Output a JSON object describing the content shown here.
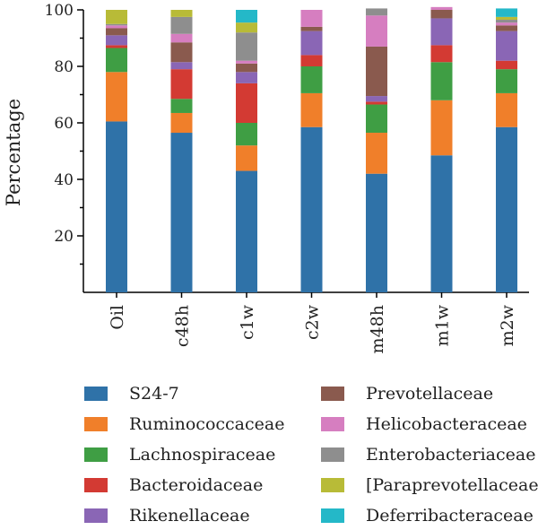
{
  "chart_data": {
    "type": "bar",
    "stacked": true,
    "ylabel": "Percentage",
    "xlabel": "",
    "ylim": [
      0,
      100
    ],
    "yticks": [
      20,
      40,
      60,
      80,
      100
    ],
    "categories": [
      "Oil",
      "c48h",
      "c1w",
      "c2w",
      "m48h",
      "m1w",
      "m2w"
    ],
    "series": [
      {
        "name": "S24-7",
        "color": "#2f72a8",
        "values": [
          60.5,
          56.5,
          43,
          58.5,
          42,
          48.5,
          58.5
        ]
      },
      {
        "name": "Ruminococcaceae",
        "color": "#f07f2a",
        "values": [
          17.5,
          7,
          9,
          12,
          14.5,
          19.5,
          12
        ]
      },
      {
        "name": "Lachnospiraceae",
        "color": "#3f9e44",
        "values": [
          8.5,
          5,
          8,
          9.5,
          10,
          13.5,
          8.5
        ]
      },
      {
        "name": "Bacteroidaceae",
        "color": "#d33a33",
        "values": [
          1,
          10.5,
          14,
          4,
          1,
          6,
          3
        ]
      },
      {
        "name": "Rikenellaceae",
        "color": "#8a66b5",
        "values": [
          3.5,
          2.5,
          4,
          8.5,
          2,
          9.5,
          10.5
        ]
      },
      {
        "name": "Prevotellaceae",
        "color": "#8a5a4e",
        "values": [
          2.5,
          7,
          3,
          1.5,
          17.5,
          3,
          2
        ]
      },
      {
        "name": "Helicobacteraceae",
        "color": "#d67ec0",
        "values": [
          1,
          3,
          1,
          6,
          11,
          1,
          1
        ]
      },
      {
        "name": "Enterobacteriaceae",
        "color": "#8e8e8e",
        "values": [
          0.5,
          6,
          10,
          0,
          2.5,
          0,
          1
        ]
      },
      {
        "name": "[Paraprevotellaceae]",
        "color": "#b8bb37",
        "values": [
          5,
          2.5,
          3.5,
          0,
          0,
          0,
          1
        ]
      },
      {
        "name": "Deferribacteraceae",
        "color": "#24b8c8",
        "values": [
          0,
          0,
          4.5,
          0,
          0,
          0,
          3
        ]
      }
    ]
  }
}
